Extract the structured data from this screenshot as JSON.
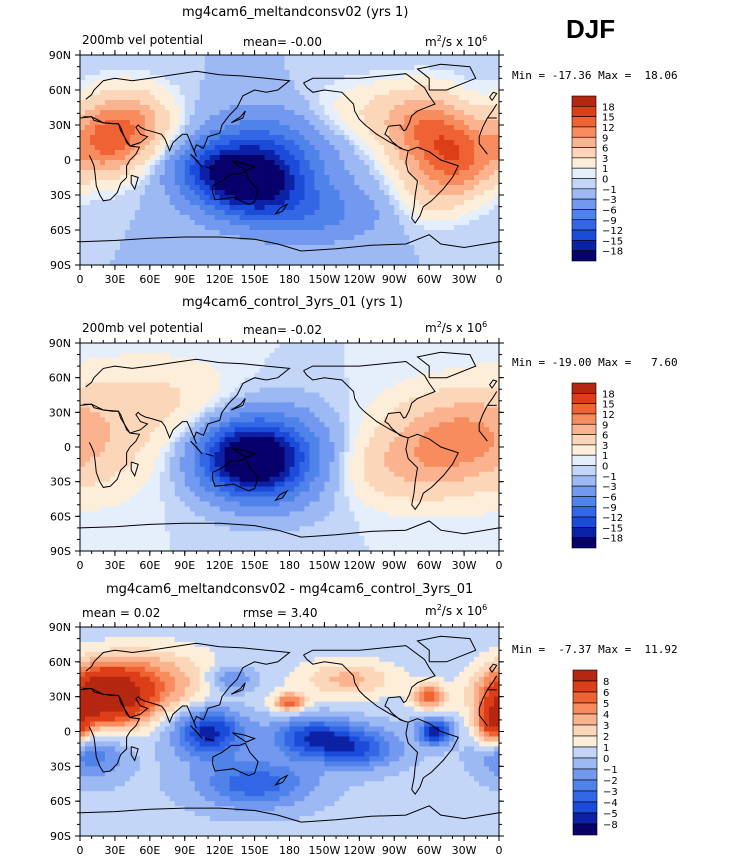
{
  "season": "DJF",
  "chart_data": [
    {
      "type": "heatmap",
      "title": "mg4cam6_meltandconsv02 (yrs 1)",
      "left_label": "200mb vel potential",
      "center_label": "mean=   -0.00",
      "right_label_base": "m",
      "right_label_exp1": "2",
      "right_label_mid": "/s x 10",
      "right_label_exp2": "6",
      "stats": "Min = -17.36 Max =  18.06",
      "lat_ticks": [
        "90N",
        "60N",
        "30N",
        "0",
        "30S",
        "60S",
        "90S"
      ],
      "lon_ticks": [
        "0",
        "30E",
        "60E",
        "90E",
        "120E",
        "150E",
        "180",
        "150W",
        "120W",
        "90W",
        "60W",
        "30W",
        "0"
      ],
      "colorbar_labels": [
        "18",
        "15",
        "12",
        "9",
        "6",
        "3",
        "1",
        "0",
        "-1",
        "-3",
        "-6",
        "-9",
        "-12",
        "-15",
        "-18"
      ],
      "levels": [
        -18,
        -15,
        -12,
        -9,
        -6,
        -3,
        -1,
        0,
        1,
        3,
        6,
        9,
        12,
        15,
        18
      ],
      "colors": [
        "#08006b",
        "#0d21a6",
        "#1a4bd9",
        "#3367e6",
        "#5083ea",
        "#7299ef",
        "#9cb9f3",
        "#c3d6f7",
        "#e5eefb",
        "#fdeed9",
        "#fcd6b9",
        "#fbb38f",
        "#f78c5e",
        "#ef6233",
        "#dc3e18",
        "#b52710"
      ],
      "centers": [
        [
          145,
          -20,
          -18,
          32,
          20
        ],
        [
          160,
          10,
          -8,
          40,
          24
        ],
        [
          200,
          -45,
          -6,
          40,
          18
        ],
        [
          110,
          -5,
          -6,
          25,
          15
        ],
        [
          40,
          30,
          11,
          28,
          22
        ],
        [
          20,
          10,
          8,
          20,
          20
        ],
        [
          300,
          20,
          12,
          25,
          25
        ],
        [
          330,
          0,
          10,
          20,
          22
        ],
        [
          300,
          -30,
          4,
          20,
          18
        ],
        [
          250,
          40,
          4,
          40,
          20
        ]
      ],
      "bias": -1
    },
    {
      "type": "heatmap",
      "title": "mg4cam6_control_3yrs_01 (yrs 1)",
      "left_label": "200mb vel potential",
      "center_label": "mean=   -0.02",
      "right_label_base": "m",
      "right_label_exp1": "2",
      "right_label_mid": "/s x 10",
      "right_label_exp2": "6",
      "stats": "Min = -19.00 Max =   7.60",
      "lat_ticks": [
        "90N",
        "60N",
        "30N",
        "0",
        "30S",
        "60S",
        "90S"
      ],
      "lon_ticks": [
        "0",
        "30E",
        "60E",
        "90E",
        "120E",
        "150E",
        "180",
        "150W",
        "120W",
        "90W",
        "60W",
        "30W",
        "0"
      ],
      "colorbar_labels": [
        "18",
        "15",
        "12",
        "9",
        "6",
        "3",
        "1",
        "0",
        "-1",
        "-3",
        "-6",
        "-9",
        "-12",
        "-15",
        "-18"
      ],
      "levels": [
        -18,
        -15,
        -12,
        -9,
        -6,
        -3,
        -1,
        0,
        1,
        3,
        6,
        9,
        12,
        15,
        18
      ],
      "colors": [
        "#08006b",
        "#0d21a6",
        "#1a4bd9",
        "#3367e6",
        "#5083ea",
        "#7299ef",
        "#9cb9f3",
        "#c3d6f7",
        "#e5eefb",
        "#fdeed9",
        "#fcd6b9",
        "#fbb38f",
        "#f78c5e",
        "#ef6233",
        "#dc3e18",
        "#b52710"
      ],
      "centers": [
        [
          145,
          -10,
          -19,
          30,
          22
        ],
        [
          170,
          -10,
          -8,
          40,
          30
        ],
        [
          20,
          10,
          4,
          35,
          35
        ],
        [
          300,
          0,
          6,
          40,
          30
        ],
        [
          330,
          10,
          5,
          30,
          25
        ],
        [
          80,
          40,
          3,
          40,
          25
        ],
        [
          260,
          -20,
          3,
          40,
          20
        ]
      ],
      "bias": 0
    },
    {
      "type": "heatmap",
      "title": "mg4cam6_meltandconsv02 - mg4cam6_control_3yrs_01",
      "left_label": "mean =    0.02",
      "center_label": "rmse =    3.40",
      "right_label_base": "m",
      "right_label_exp1": "2",
      "right_label_mid": "/s x 10",
      "right_label_exp2": "6",
      "stats": "Min =  -7.37 Max =  11.92",
      "lat_ticks": [
        "90N",
        "60N",
        "30N",
        "0",
        "30S",
        "60S",
        "90S"
      ],
      "lon_ticks": [
        "0",
        "30E",
        "60E",
        "90E",
        "120E",
        "150E",
        "180",
        "150W",
        "120W",
        "90W",
        "60W",
        "30W",
        "0"
      ],
      "colorbar_labels": [
        "8",
        "6",
        "5",
        "4",
        "3",
        "2",
        "1",
        "0",
        "-1",
        "-2",
        "-3",
        "-4",
        "-5",
        "-8"
      ],
      "levels": [
        -8,
        -5,
        -4,
        -3,
        -2,
        -1,
        0,
        1,
        2,
        3,
        4,
        5,
        6,
        8
      ],
      "colors": [
        "#08006b",
        "#0d21a6",
        "#1a4bd9",
        "#3367e6",
        "#5083ea",
        "#7299ef",
        "#9cb9f3",
        "#c3d6f7",
        "#fdeed9",
        "#fcd6b9",
        "#fbb38f",
        "#f78c5e",
        "#ef6233",
        "#dc3e18",
        "#b52710"
      ],
      "centers": [
        [
          20,
          30,
          9,
          25,
          18
        ],
        [
          60,
          40,
          4,
          40,
          22
        ],
        [
          110,
          0,
          -6,
          22,
          15
        ],
        [
          150,
          -45,
          -4,
          35,
          15
        ],
        [
          200,
          -5,
          -5,
          25,
          12
        ],
        [
          240,
          -15,
          -4,
          25,
          12
        ],
        [
          305,
          0,
          -6,
          10,
          8
        ],
        [
          300,
          30,
          5,
          10,
          8
        ],
        [
          180,
          25,
          5,
          10,
          6
        ],
        [
          355,
          5,
          6,
          10,
          12
        ],
        [
          230,
          45,
          3,
          30,
          12
        ],
        [
          10,
          -20,
          -3,
          20,
          15
        ],
        [
          130,
          45,
          -3,
          15,
          8
        ]
      ],
      "bias": 0.3
    }
  ]
}
